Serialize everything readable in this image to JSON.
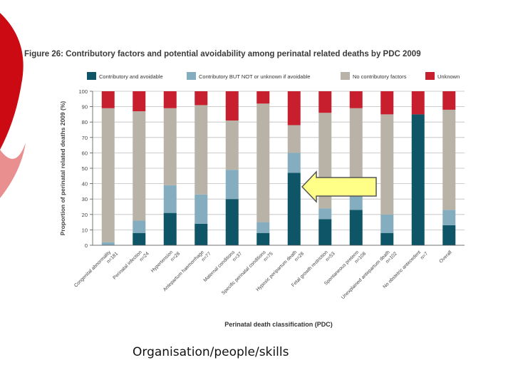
{
  "figure_title": "Figure 26: Contributory factors and potential avoidability among perinatal related deaths by PDC 2009",
  "caption": "Organisation/people/skills",
  "colors": {
    "accent_red": "#cc0a14",
    "accent_pink": "#ea8f8f",
    "arrow_fill": "#ffff88",
    "arrow_stroke": "#555555"
  },
  "arrow": {
    "pointing_to": "Hypoxic peripartum death",
    "shape": "left-arrow-icon"
  },
  "chart_data": {
    "type": "bar",
    "stacked": true,
    "xlabel": "Perinatal death classification (PDC)",
    "ylabel": "Proportion of perinatal related deaths 2009 (%)",
    "ylim": [
      0,
      100
    ],
    "yticks": [
      0,
      10,
      20,
      30,
      40,
      50,
      60,
      70,
      80,
      90,
      100
    ],
    "grid": true,
    "legend_position": "top",
    "categories": [
      "Congenital abnormality",
      "Perinatal infection",
      "Hypertension",
      "Antepartum haemorrhage",
      "Maternal conditions",
      "Specific perinatal conditions",
      "Hypoxic peripartum death",
      "Fetal growth restriction",
      "Spontaneous preterm",
      "Unexplained antepartum death",
      "No obstetric antecedent",
      "Overall"
    ],
    "category_n": [
      "n=181",
      "n=24",
      "n=28",
      "n=77",
      "n=37",
      "n=75",
      "n=28",
      "n=53",
      "n=108",
      "n=102",
      "n=7",
      ""
    ],
    "series": [
      {
        "name": "Contributory and avoidable",
        "color": "#0d5567",
        "values": [
          0,
          8,
          21,
          14,
          30,
          8,
          47,
          17,
          23,
          8,
          85,
          13
        ]
      },
      {
        "name": "Contributory BUT NOT or unknown if avoidable",
        "color": "#84aec0",
        "values": [
          2,
          8,
          18,
          19,
          19,
          7,
          13,
          7,
          12,
          12,
          0,
          10
        ]
      },
      {
        "name": "No contributory factors",
        "color": "#b9b3a7",
        "values": [
          87,
          71,
          50,
          58,
          32,
          77,
          18,
          62,
          54,
          65,
          0,
          65
        ]
      },
      {
        "name": "Unknown",
        "color": "#c81f2e",
        "values": [
          11,
          13,
          11,
          9,
          19,
          8,
          22,
          14,
          11,
          15,
          15,
          12
        ]
      }
    ]
  }
}
